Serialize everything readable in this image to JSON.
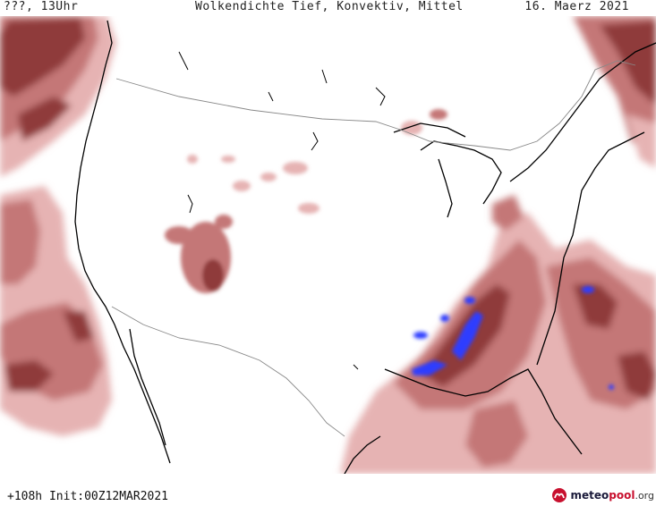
{
  "header": {
    "run_label": "???, 13Uhr",
    "title": "Wolkendichte   Tief, Konvektiv, Mittel",
    "date": "16. Maerz 2021"
  },
  "footer": {
    "forecast_label": "+108h Init:00Z12MAR2021",
    "logo": {
      "word_a": "meteo",
      "word_b": "pool",
      "tld": ".org"
    }
  },
  "map": {
    "region": "continental-usa",
    "icons": [
      "cloud-density-field",
      "coastline",
      "border-line",
      "meteopool-logo-icon"
    ],
    "colors": {
      "cloud_light": "#e6b3b3",
      "cloud_mid": "#c47777",
      "cloud_dark": "#8f3b3b",
      "convective": "#2d3dff",
      "coast": "#000000",
      "border": "#888888"
    }
  }
}
